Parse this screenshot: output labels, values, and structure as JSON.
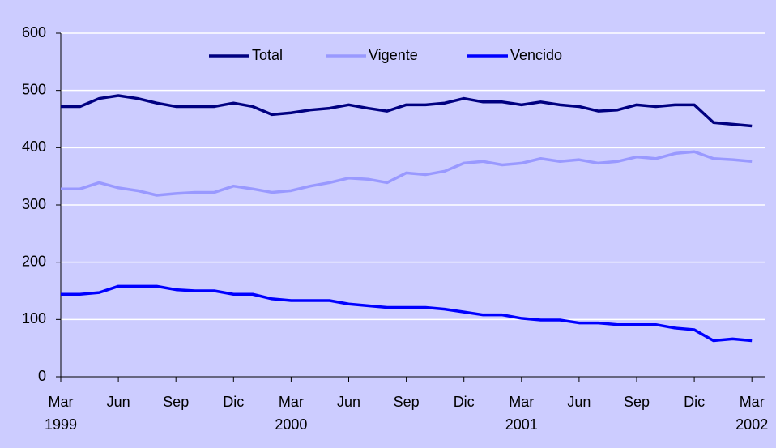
{
  "chart_data": {
    "type": "line",
    "categories": [
      "Mar",
      null,
      null,
      "Jun",
      null,
      null,
      "Sep",
      null,
      null,
      "Dic",
      null,
      null,
      "Mar",
      null,
      null,
      "Jun",
      null,
      null,
      "Sep",
      null,
      null,
      "Dic",
      null,
      null,
      "Mar",
      null,
      null,
      "Jun",
      null,
      null,
      "Sep",
      null,
      null,
      "Dic",
      null,
      null,
      "Mar"
    ],
    "category_years": [
      "1999",
      null,
      null,
      null,
      null,
      null,
      null,
      null,
      null,
      null,
      null,
      null,
      "2000",
      null,
      null,
      null,
      null,
      null,
      null,
      null,
      null,
      null,
      null,
      null,
      "2001",
      null,
      null,
      null,
      null,
      null,
      null,
      null,
      null,
      null,
      null,
      null,
      "2002"
    ],
    "series": [
      {
        "name": "Total",
        "color": "#000080",
        "values": [
          472,
          472,
          486,
          491,
          486,
          478,
          472,
          472,
          472,
          478,
          472,
          458,
          461,
          466,
          469,
          475,
          469,
          464,
          475,
          475,
          478,
          486,
          480,
          480,
          475,
          480,
          475,
          472,
          464,
          466,
          475,
          472,
          475,
          475,
          444,
          441,
          438
        ]
      },
      {
        "name": "Vigente",
        "color": "#9999ff",
        "values": [
          328,
          328,
          339,
          330,
          325,
          317,
          320,
          322,
          322,
          333,
          328,
          322,
          325,
          333,
          339,
          347,
          345,
          339,
          356,
          353,
          359,
          373,
          376,
          370,
          373,
          381,
          376,
          379,
          373,
          376,
          384,
          381,
          390,
          393,
          381,
          379,
          376
        ]
      },
      {
        "name": "Vencido",
        "color": "#0000ff",
        "values": [
          144,
          144,
          147,
          158,
          158,
          158,
          152,
          150,
          150,
          144,
          144,
          136,
          133,
          133,
          133,
          127,
          124,
          121,
          121,
          121,
          118,
          113,
          108,
          108,
          102,
          99,
          99,
          94,
          94,
          91,
          91,
          91,
          85,
          82,
          63,
          66,
          63
        ]
      }
    ],
    "ylim": [
      0,
      600
    ],
    "yticks": [
      0,
      100,
      200,
      300,
      400,
      500,
      600
    ],
    "grid": true,
    "legend": "top"
  }
}
